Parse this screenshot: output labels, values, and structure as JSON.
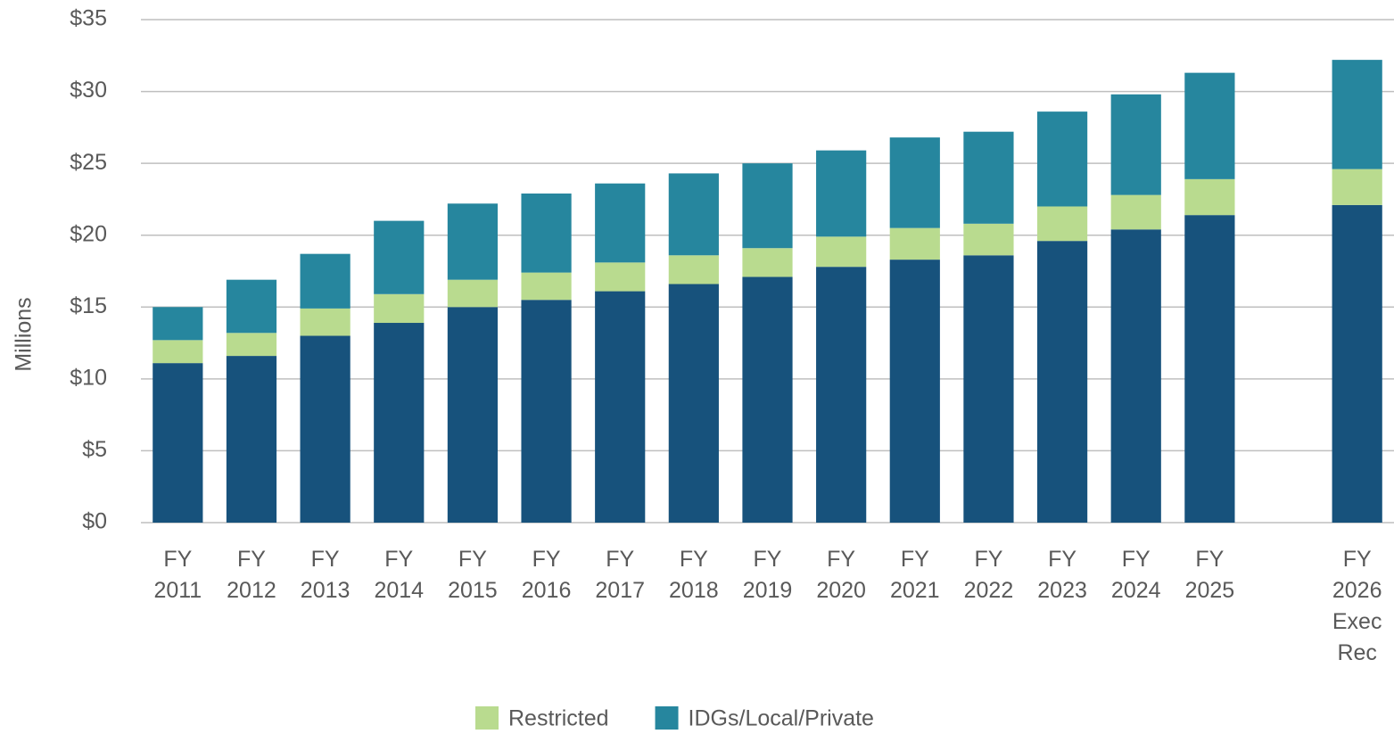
{
  "chart_data": {
    "type": "stacked_bar",
    "y_label": "Millions",
    "categories": [
      "FY 2011",
      "FY 2012",
      "FY 2013",
      "FY 2014",
      "FY 2015",
      "FY 2016",
      "FY 2017",
      "FY 2018",
      "FY 2019",
      "FY 2020",
      "FY 2021",
      "FY 2022",
      "FY 2023",
      "FY 2024",
      "FY 2025",
      null,
      "FY 2026 Exec Rec"
    ],
    "series": [
      {
        "color": "#17527c",
        "values": [
          11.1,
          11.6,
          13.0,
          13.9,
          15.0,
          15.5,
          16.1,
          16.6,
          17.1,
          17.8,
          18.3,
          18.6,
          19.6,
          20.4,
          21.4,
          null,
          22.1
        ]
      },
      {
        "name": "Restricted",
        "color": "#b9db8f",
        "values": [
          1.6,
          1.6,
          1.9,
          2.0,
          1.9,
          1.9,
          2.0,
          2.0,
          2.0,
          2.1,
          2.2,
          2.2,
          2.4,
          2.4,
          2.5,
          null,
          2.5
        ]
      },
      {
        "name": "IDGs/Local/Private",
        "color": "#26869e",
        "values": [
          2.3,
          3.7,
          3.8,
          5.1,
          5.3,
          5.5,
          5.5,
          5.7,
          5.9,
          6.0,
          6.3,
          6.4,
          6.6,
          7.0,
          7.4,
          null,
          7.6
        ]
      }
    ],
    "ylim": [
      0,
      35
    ],
    "yticks": [
      {
        "value": 0,
        "label": "$0"
      },
      {
        "value": 5,
        "label": "$5"
      },
      {
        "value": 10,
        "label": "$10"
      },
      {
        "value": 15,
        "label": "$15"
      },
      {
        "value": 20,
        "label": "$20"
      },
      {
        "value": 25,
        "label": "$25"
      },
      {
        "value": 30,
        "label": "$30"
      },
      {
        "value": 35,
        "label": "$35"
      }
    ],
    "grid": true,
    "legend": "bottom"
  }
}
